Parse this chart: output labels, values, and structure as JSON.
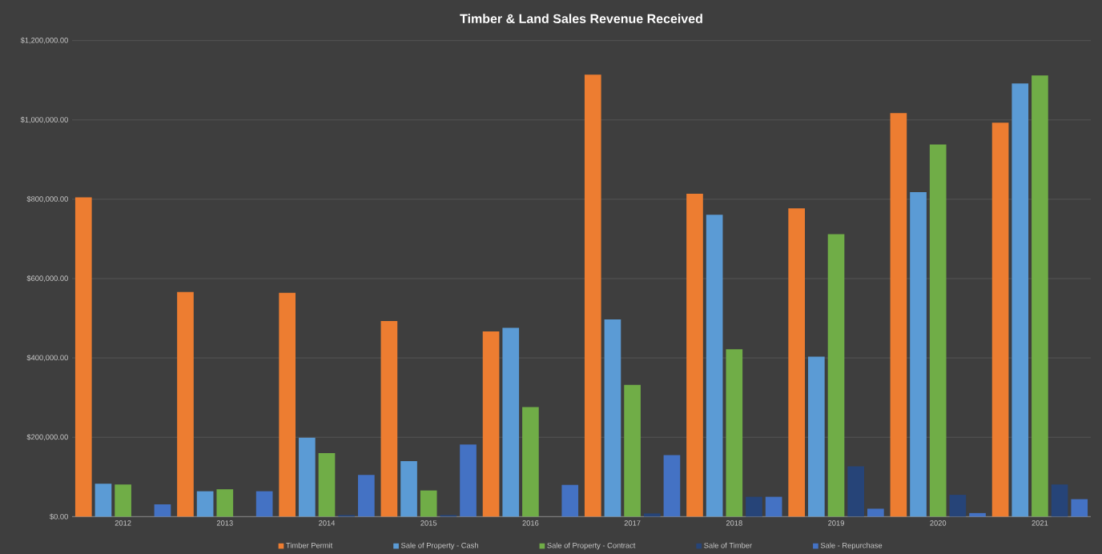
{
  "chart_data": {
    "type": "bar",
    "title": "Timber & Land Sales Revenue Received",
    "categories": [
      "2012",
      "2013",
      "2014",
      "2015",
      "2016",
      "2017",
      "2018",
      "2019",
      "2020",
      "2021"
    ],
    "series": [
      {
        "name": "Timber Permit",
        "color": "#ed7d31",
        "values": [
          805000,
          566000,
          564000,
          493000,
          467000,
          1114000,
          814000,
          777000,
          1017000,
          993000
        ]
      },
      {
        "name": "Sale of Property - Cash",
        "color": "#5b9bd5",
        "values": [
          83000,
          64000,
          199000,
          140000,
          476000,
          497000,
          761000,
          403000,
          818000,
          1092000
        ]
      },
      {
        "name": "Sale of Property -  Contract",
        "color": "#70ad47",
        "values": [
          81000,
          69000,
          160000,
          66000,
          276000,
          332000,
          422000,
          712000,
          938000,
          1112000
        ]
      },
      {
        "name": "Sale of Timber",
        "color": "#264478",
        "values": [
          null,
          null,
          4000,
          4000,
          0,
          8000,
          50000,
          127000,
          55000,
          81000
        ]
      },
      {
        "name": "Sale - Repurchase",
        "color": "#4472c4",
        "values": [
          31000,
          64000,
          105000,
          182000,
          80000,
          155000,
          50000,
          20000,
          9000,
          44000
        ]
      }
    ],
    "ylim": [
      0,
      1200000
    ],
    "yticks": [
      {
        "value": 0,
        "label": "$0.00"
      },
      {
        "value": 200000,
        "label": "$200,000.00"
      },
      {
        "value": 400000,
        "label": "$400,000.00"
      },
      {
        "value": 600000,
        "label": "$600,000.00"
      },
      {
        "value": 800000,
        "label": "$800,000.00"
      },
      {
        "value": 1000000,
        "label": "$1,000,000.00"
      },
      {
        "value": 1200000,
        "label": "$1,200,000.00"
      }
    ],
    "grid": "y",
    "legend": "bottom"
  }
}
